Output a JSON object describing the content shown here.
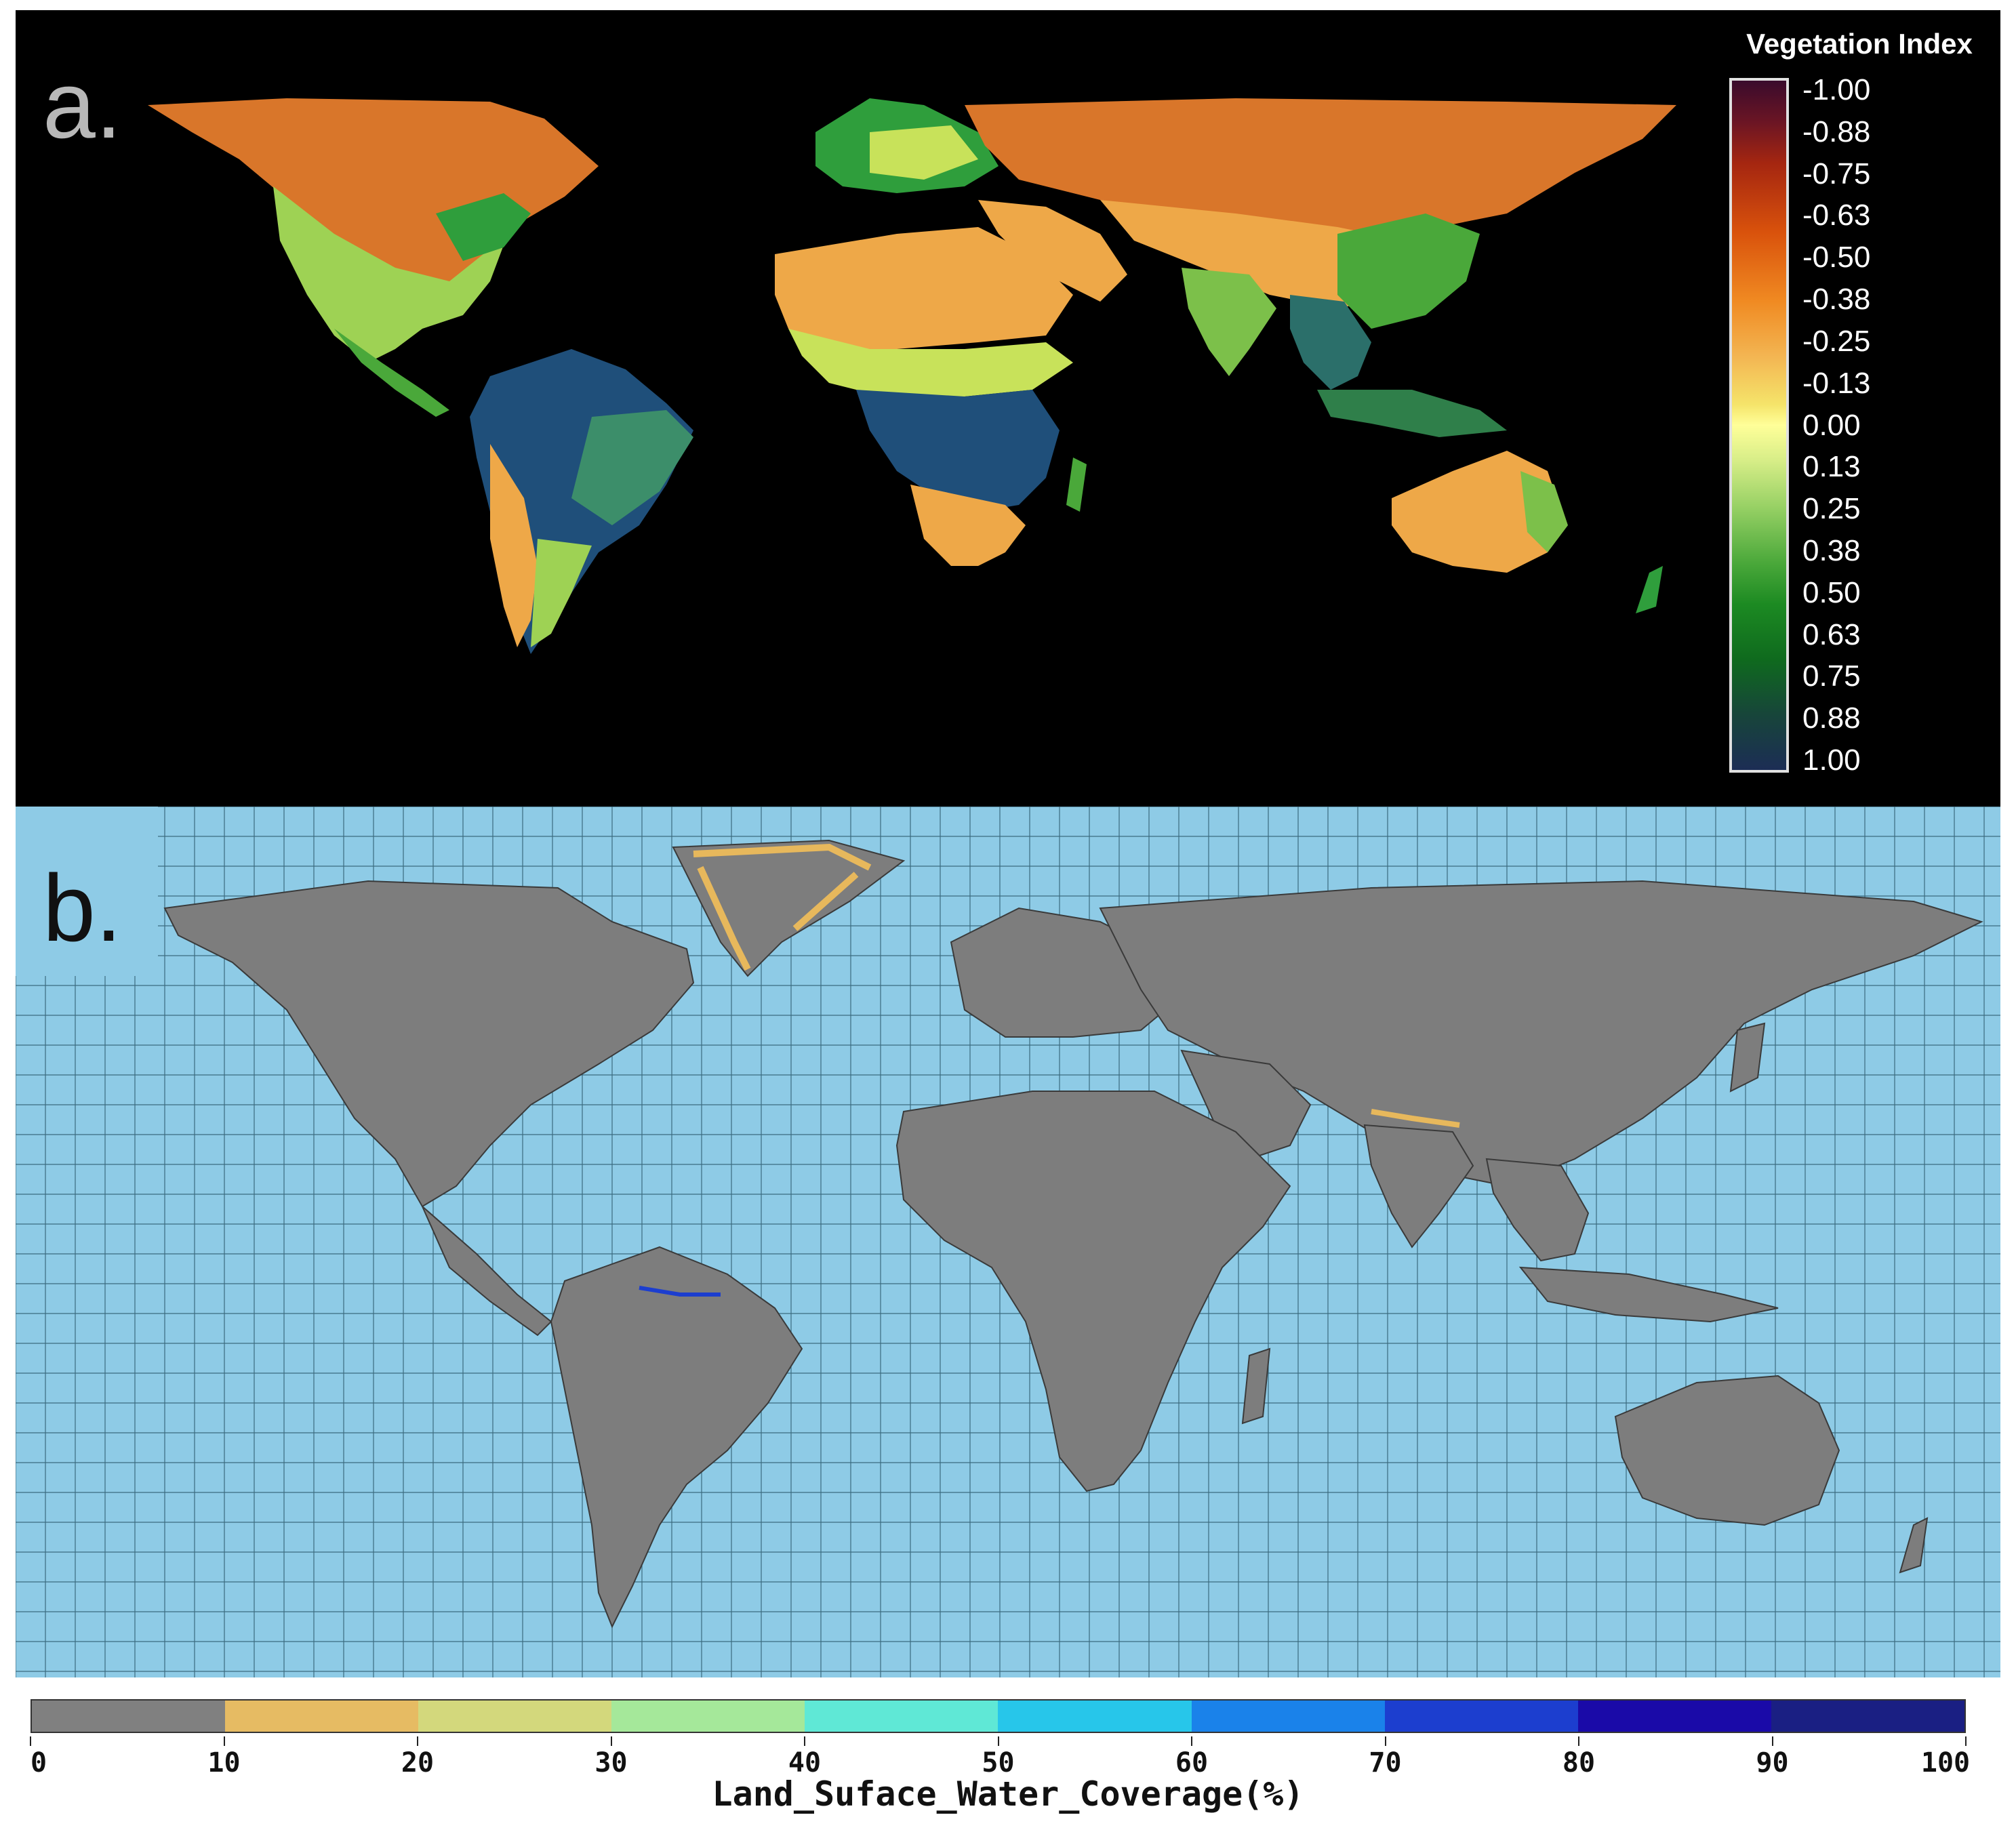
{
  "panel_a": {
    "letter": "a.",
    "legend": {
      "title": "Vegetation Index",
      "ticks": [
        "-1.00",
        "-0.88",
        "-0.75",
        "-0.63",
        "-0.50",
        "-0.38",
        "-0.25",
        "-0.13",
        "0.00",
        "0.13",
        "0.25",
        "0.38",
        "0.50",
        "0.63",
        "0.75",
        "0.88",
        "1.00"
      ]
    },
    "colors": {
      "ocean": "#000000",
      "desert": "#eea848",
      "tundra": "#d9762a",
      "grass": "#c8e25a",
      "forest": "#2f9e3c",
      "rainforest": "#1f4f7a"
    }
  },
  "panel_b": {
    "letter": "b.",
    "colors": {
      "ocean": "#8ecbe6",
      "land": "#7d7d7d",
      "grid": "#3b6b7f",
      "border": "#3a3a3a",
      "ice_water": "#e7b85c"
    }
  },
  "water_legend": {
    "title": "Land_Suface_Water_Coverage(%)",
    "ticks": [
      "0",
      "10",
      "20",
      "30",
      "40",
      "50",
      "60",
      "70",
      "80",
      "90",
      "100"
    ],
    "segment_colors": [
      "#808080",
      "#e6bb63",
      "#d3d87c",
      "#a5e89a",
      "#5fe8d6",
      "#27c6ea",
      "#1a82ea",
      "#1c3ecf",
      "#1a0aa8",
      "#1a1f83"
    ]
  }
}
